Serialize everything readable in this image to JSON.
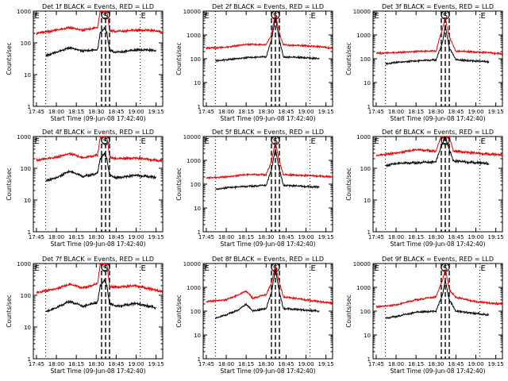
{
  "chart_data": {
    "type": "line",
    "xticks": [
      "17:45",
      "18:00",
      "18:15",
      "18:30",
      "18:45",
      "19:00",
      "19:15"
    ],
    "xlabel": "Start Time (09-Jun-08 17:42:40)",
    "ylabel": "Counts/sec",
    "yticks": [
      "1",
      "10",
      "100",
      "1000",
      "10000"
    ],
    "ylim": [
      1,
      10000
    ],
    "yscale": "log",
    "xlim": [
      "17:42:40",
      "19:20"
    ],
    "grid": "dotted vertical markers",
    "series_names": [
      "Events",
      "LLD"
    ],
    "series_colors": {
      "events": "#000000",
      "lld": "#e00000"
    },
    "markers": {
      "E": [
        "17:43",
        "19:03"
      ],
      "S": "18:37",
      "dotted_lines": [
        "17:52",
        "19:03"
      ],
      "dashed_lines": [
        "18:34",
        "18:37",
        "18:40"
      ]
    },
    "panels": [
      {
        "title": "Det 1f BLACK = Events, RED = LLD",
        "ymax": 1000,
        "events": {
          "t": [
            "17:52",
            "18:00",
            "18:10",
            "18:20",
            "18:31",
            "18:33",
            "18:36",
            "18:38",
            "18:40",
            "18:45",
            "19:00",
            "19:10",
            "19:15"
          ],
          "v": [
            40,
            50,
            70,
            55,
            60,
            200,
            300,
            200,
            60,
            50,
            60,
            60,
            55
          ]
        },
        "lld": {
          "t": [
            "17:45",
            "18:00",
            "18:10",
            "18:20",
            "18:31",
            "18:33",
            "18:36",
            "18:38",
            "18:40",
            "18:45",
            "19:00",
            "19:10",
            "19:20"
          ],
          "v": [
            200,
            250,
            300,
            250,
            300,
            1000,
            1000,
            1000,
            250,
            230,
            250,
            250,
            220
          ]
        }
      },
      {
        "title": "Det 2f BLACK = Events, RED = LLD",
        "ymax": 10000,
        "events": {
          "t": [
            "17:52",
            "18:00",
            "18:15",
            "18:30",
            "18:34",
            "18:37",
            "18:40",
            "18:43",
            "19:00",
            "19:10"
          ],
          "v": [
            80,
            90,
            110,
            120,
            600,
            5500,
            600,
            120,
            110,
            100
          ]
        },
        "lld": {
          "t": [
            "17:45",
            "18:00",
            "18:15",
            "18:30",
            "18:34",
            "18:37",
            "18:40",
            "18:43",
            "19:00",
            "19:10",
            "19:20"
          ],
          "v": [
            280,
            300,
            400,
            380,
            1000,
            8000,
            1200,
            380,
            350,
            320,
            280
          ]
        }
      },
      {
        "title": "Det 3f BLACK = Events, RED = LLD",
        "ymax": 10000,
        "events": {
          "t": [
            "17:52",
            "18:00",
            "18:15",
            "18:30",
            "18:35",
            "18:37",
            "18:40",
            "18:45",
            "19:00",
            "19:10"
          ],
          "v": [
            60,
            70,
            80,
            90,
            500,
            2500,
            300,
            90,
            80,
            75
          ]
        },
        "lld": {
          "t": [
            "17:45",
            "18:00",
            "18:15",
            "18:30",
            "18:35",
            "18:37",
            "18:40",
            "18:45",
            "19:00",
            "19:10",
            "19:20"
          ],
          "v": [
            170,
            180,
            200,
            210,
            2000,
            5500,
            800,
            210,
            190,
            180,
            160
          ]
        }
      },
      {
        "title": "Det 4f BLACK = Events, RED = LLD",
        "ymax": 1000,
        "events": {
          "t": [
            "17:52",
            "18:00",
            "18:10",
            "18:20",
            "18:31",
            "18:33",
            "18:36",
            "18:38",
            "18:40",
            "18:45",
            "19:00",
            "19:10",
            "19:15"
          ],
          "v": [
            40,
            50,
            80,
            55,
            70,
            200,
            300,
            200,
            60,
            50,
            60,
            55,
            50
          ]
        },
        "lld": {
          "t": [
            "17:45",
            "18:00",
            "18:10",
            "18:20",
            "18:31",
            "18:33",
            "18:36",
            "18:38",
            "18:40",
            "18:45",
            "19:00",
            "19:10",
            "19:20"
          ],
          "v": [
            180,
            220,
            290,
            210,
            260,
            1000,
            1000,
            1000,
            230,
            200,
            210,
            190,
            170
          ]
        }
      },
      {
        "title": "Det 5f BLACK = Events, RED = LLD",
        "ymax": 10000,
        "events": {
          "t": [
            "17:52",
            "18:00",
            "18:15",
            "18:30",
            "18:34",
            "18:37",
            "18:40",
            "18:43",
            "19:00",
            "19:10"
          ],
          "v": [
            60,
            70,
            80,
            90,
            400,
            3000,
            400,
            90,
            80,
            75
          ]
        },
        "lld": {
          "t": [
            "17:45",
            "18:00",
            "18:15",
            "18:30",
            "18:34",
            "18:37",
            "18:40",
            "18:43",
            "19:00",
            "19:10",
            "19:20"
          ],
          "v": [
            180,
            200,
            250,
            250,
            900,
            6000,
            900,
            250,
            230,
            220,
            200
          ]
        }
      },
      {
        "title": "Det 6f BLACK = Events, RED = LLD",
        "ymax": 1000,
        "events": {
          "t": [
            "17:52",
            "18:00",
            "18:15",
            "18:30",
            "18:34",
            "18:37",
            "18:40",
            "18:43",
            "19:00",
            "19:10"
          ],
          "v": [
            120,
            140,
            150,
            160,
            500,
            1000,
            400,
            170,
            150,
            140
          ]
        },
        "lld": {
          "t": [
            "17:45",
            "18:00",
            "18:15",
            "18:30",
            "18:34",
            "18:37",
            "18:40",
            "18:43",
            "19:00",
            "19:10",
            "19:20"
          ],
          "v": [
            250,
            300,
            380,
            350,
            1000,
            1000,
            1000,
            350,
            300,
            280,
            260
          ]
        }
      },
      {
        "title": "Det 7f BLACK = Events, RED = LLD",
        "ymax": 1000,
        "events": {
          "t": [
            "17:52",
            "18:00",
            "18:10",
            "18:20",
            "18:31",
            "18:33",
            "18:36",
            "18:38",
            "18:40",
            "18:45",
            "19:00",
            "19:10",
            "19:15"
          ],
          "v": [
            30,
            40,
            65,
            45,
            60,
            200,
            300,
            200,
            55,
            45,
            55,
            45,
            40
          ]
        },
        "lld": {
          "t": [
            "17:45",
            "18:00",
            "18:10",
            "18:20",
            "18:31",
            "18:33",
            "18:36",
            "18:38",
            "18:40",
            "18:45",
            "19:00",
            "19:10",
            "19:20"
          ],
          "v": [
            120,
            160,
            220,
            170,
            230,
            1000,
            1000,
            1000,
            190,
            180,
            200,
            160,
            130
          ]
        }
      },
      {
        "title": "Det 8f BLACK = Events, RED = LLD",
        "ymax": 10000,
        "events": {
          "t": [
            "17:52",
            "18:00",
            "18:10",
            "18:15",
            "18:20",
            "18:30",
            "18:34",
            "18:37",
            "18:40",
            "18:43",
            "19:00",
            "19:10"
          ],
          "v": [
            50,
            70,
            120,
            200,
            100,
            130,
            600,
            6000,
            600,
            130,
            110,
            100
          ]
        },
        "lld": {
          "t": [
            "17:45",
            "18:00",
            "18:10",
            "18:15",
            "18:20",
            "18:30",
            "18:34",
            "18:37",
            "18:40",
            "18:43",
            "19:00",
            "19:10",
            "19:20"
          ],
          "v": [
            250,
            300,
            500,
            700,
            350,
            500,
            1500,
            8000,
            1500,
            400,
            300,
            250,
            220
          ]
        }
      },
      {
        "title": "Det 9f BLACK = Events, RED = LLD",
        "ymax": 10000,
        "events": {
          "t": [
            "17:52",
            "18:00",
            "18:15",
            "18:30",
            "18:35",
            "18:37",
            "18:40",
            "18:45",
            "19:00",
            "19:10"
          ],
          "v": [
            50,
            60,
            90,
            100,
            500,
            2000,
            300,
            100,
            80,
            70
          ]
        },
        "lld": {
          "t": [
            "17:45",
            "18:00",
            "18:15",
            "18:30",
            "18:35",
            "18:37",
            "18:40",
            "18:45",
            "19:00",
            "19:10",
            "19:20"
          ],
          "v": [
            150,
            180,
            300,
            400,
            2000,
            6000,
            800,
            380,
            250,
            220,
            200
          ]
        }
      }
    ]
  }
}
